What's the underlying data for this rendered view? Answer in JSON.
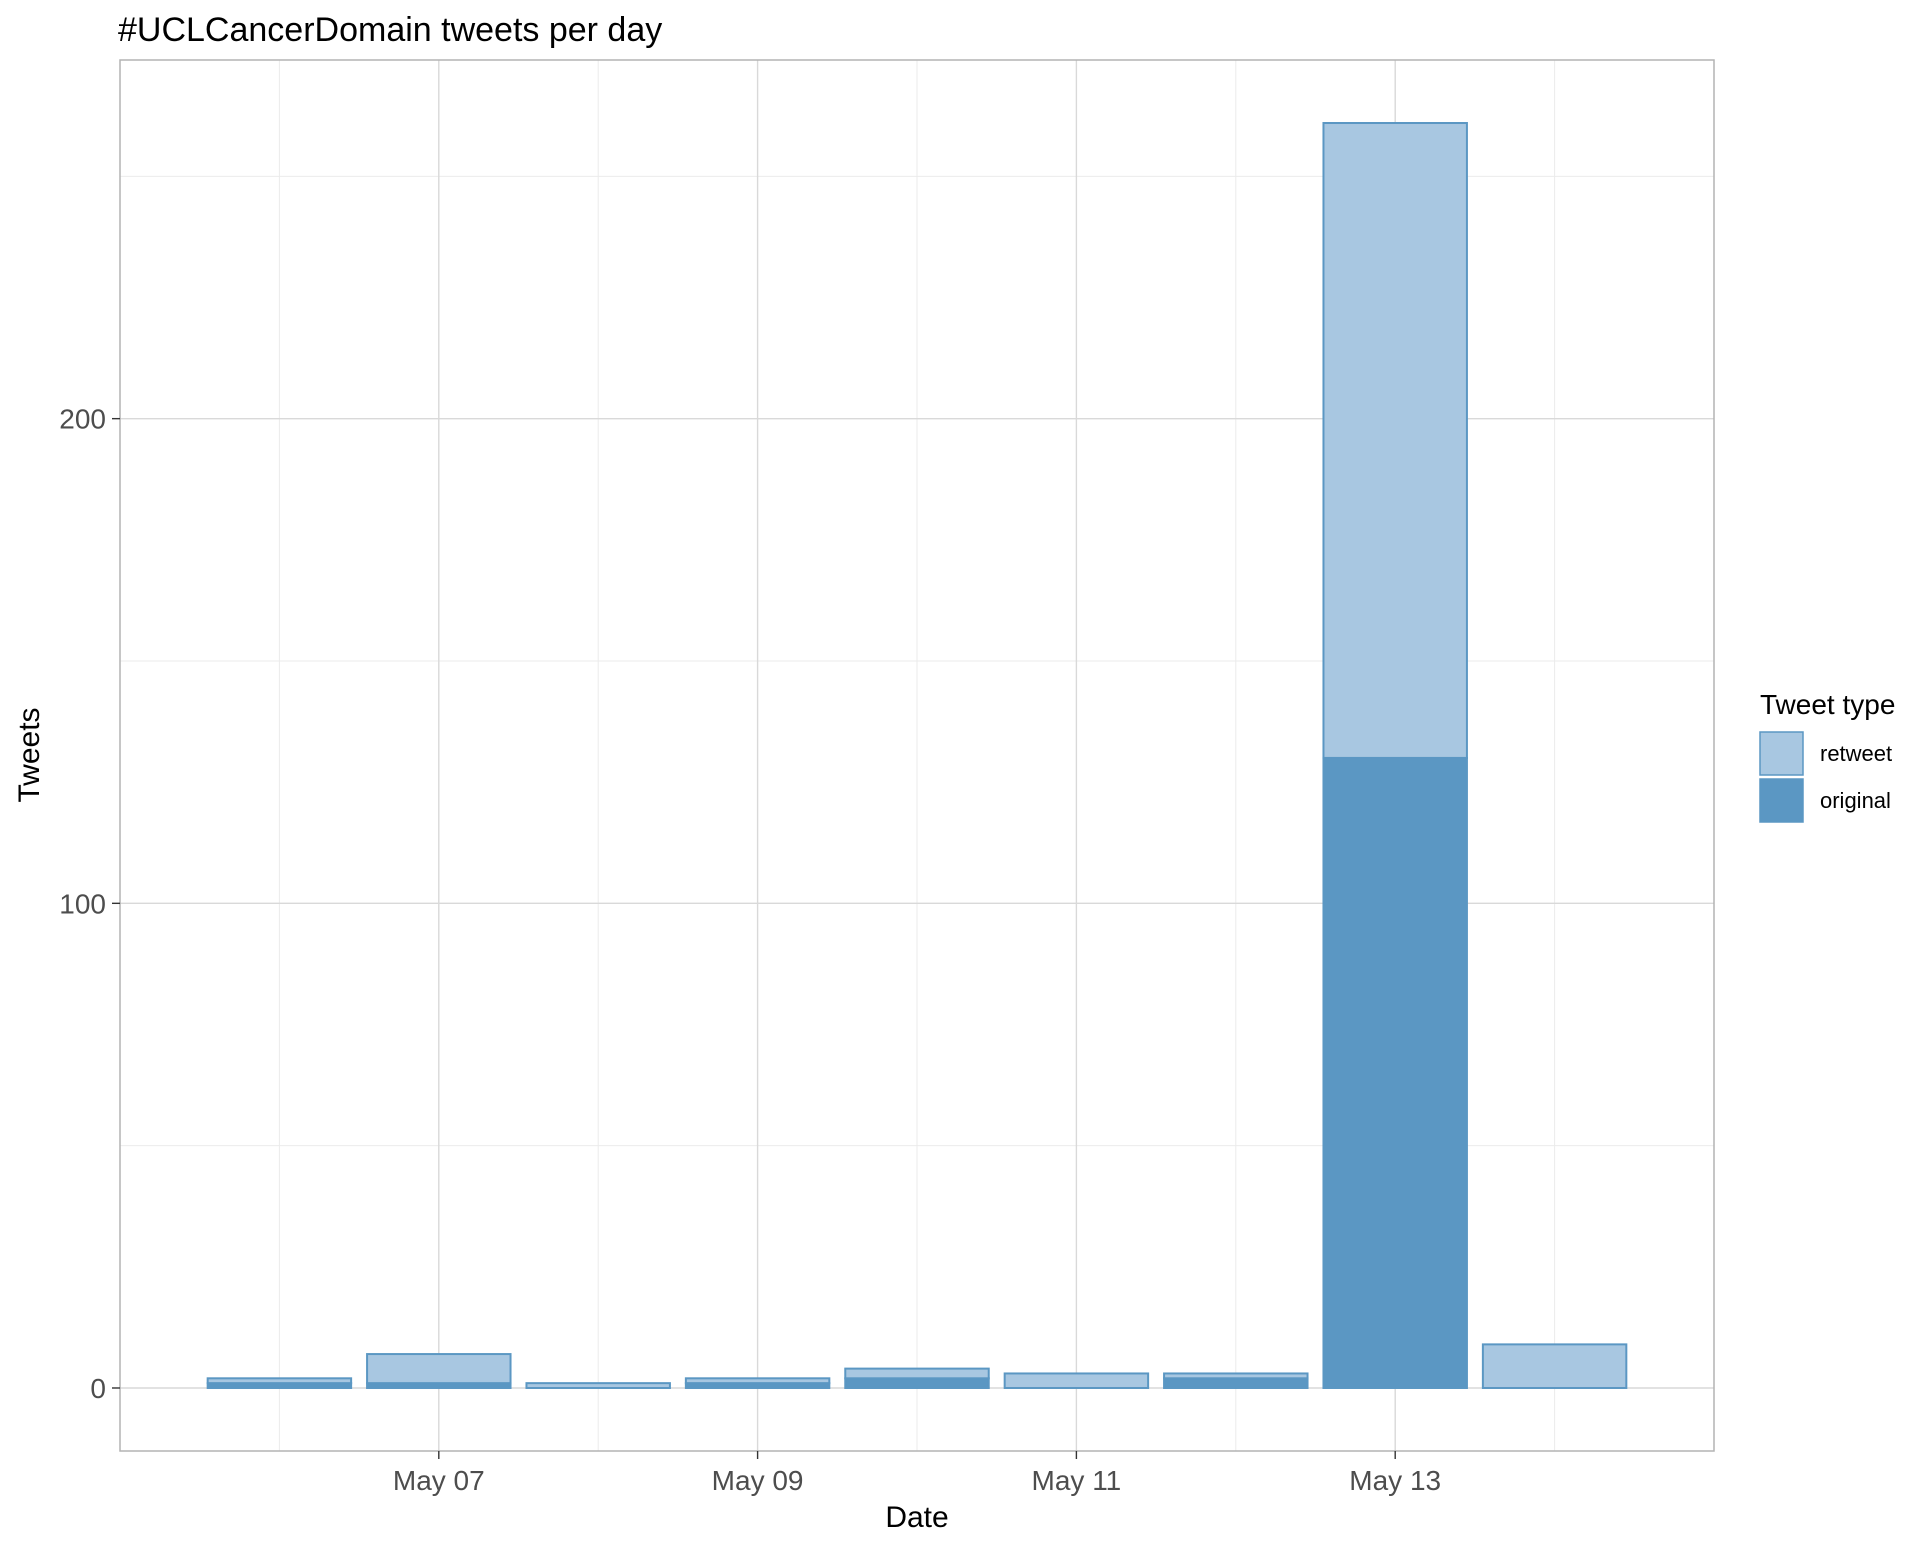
{
  "chart_data": {
    "type": "bar",
    "stacked": true,
    "title": "#UCLCancerDomain tweets per day",
    "xlabel": "Date",
    "ylabel": "Tweets",
    "ylim": [
      -13,
      274
    ],
    "y_ticks": [
      0,
      100,
      200
    ],
    "x_tick_labels": [
      "May 07",
      "May 09",
      "May 11",
      "May 13"
    ],
    "x_tick_dates": [
      "2018-05-07",
      "2018-05-09",
      "2018-05-11",
      "2018-05-13"
    ],
    "x_range": [
      "2018-05-05",
      "2018-05-15"
    ],
    "categories": [
      "2018-05-06",
      "2018-05-07",
      "2018-05-08",
      "2018-05-09",
      "2018-05-10",
      "2018-05-11",
      "2018-05-12",
      "2018-05-13",
      "2018-05-14"
    ],
    "series": [
      {
        "name": "original",
        "color": "#5b97c3",
        "values": [
          1,
          1,
          0,
          1,
          2,
          0,
          2,
          130,
          0
        ]
      },
      {
        "name": "retweet",
        "color": "#a8c7e1",
        "values": [
          1,
          6,
          1,
          1,
          2,
          3,
          1,
          131,
          9
        ]
      }
    ],
    "bar_outline_color": "#5b97c3",
    "grid": true,
    "legend": {
      "title": "Tweet type",
      "position": "right",
      "entries": [
        "retweet",
        "original"
      ]
    }
  }
}
